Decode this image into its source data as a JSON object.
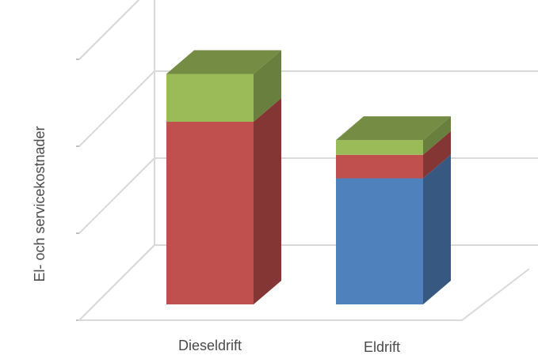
{
  "chart_data": {
    "type": "bar",
    "stacked": true,
    "three_d": true,
    "categories": [
      "Dieseldrift",
      "Eldrift"
    ],
    "series": [
      {
        "values": [
          0,
          1.45
        ],
        "color": "#4f81bd"
      },
      {
        "values": [
          2.1,
          0.27
        ],
        "color": "#c0504d"
      },
      {
        "values": [
          0.55,
          0.17
        ],
        "color": "#9bbb59"
      }
    ],
    "title": "",
    "xlabel": "",
    "ylabel": "El- och servicekostnader",
    "ylim": [
      0,
      3
    ],
    "y_ticks_labeled": false,
    "grid": true,
    "legend": "none"
  }
}
